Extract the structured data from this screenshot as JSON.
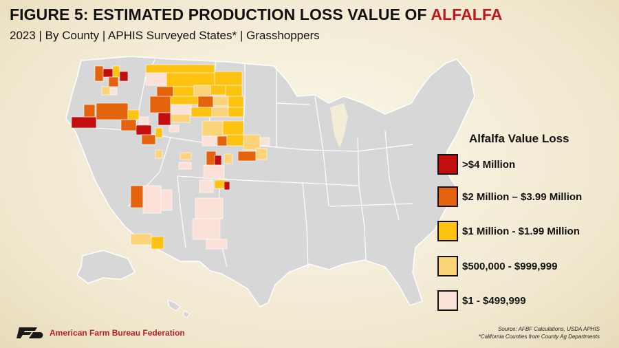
{
  "header": {
    "title_prefix": "FIGURE 5: ESTIMATED PRODUCTION LOSS VALUE OF ",
    "title_accent": "ALFALFA",
    "subtitle": "2023 | By County | APHIS Surveyed States* | Grasshoppers"
  },
  "legend": {
    "title": "Alfalfa Value Loss",
    "items": [
      {
        "label": ">$4 Million",
        "color": "#c30d0f"
      },
      {
        "label": "$2 Million – $3.99 Million",
        "color": "#e3640c"
      },
      {
        "label": "$1 Million - $1.99 Million",
        "color": "#fec310"
      },
      {
        "label": "$500,000 - $999,999",
        "color": "#fdd37a"
      },
      {
        "label": "$1 - $499,999",
        "color": "#fae2d8"
      }
    ]
  },
  "source": {
    "line1": "Source: AFBF Calculations, USDA APHIS",
    "line2": "*California Counties from County Ag Departments"
  },
  "brand": {
    "logo_mark": "FB",
    "name": "American Farm Bureau Federation"
  },
  "colors": {
    "land": "#d7d7d7",
    "borders": "#ffffff",
    "title_accent": "#c0171d"
  }
}
